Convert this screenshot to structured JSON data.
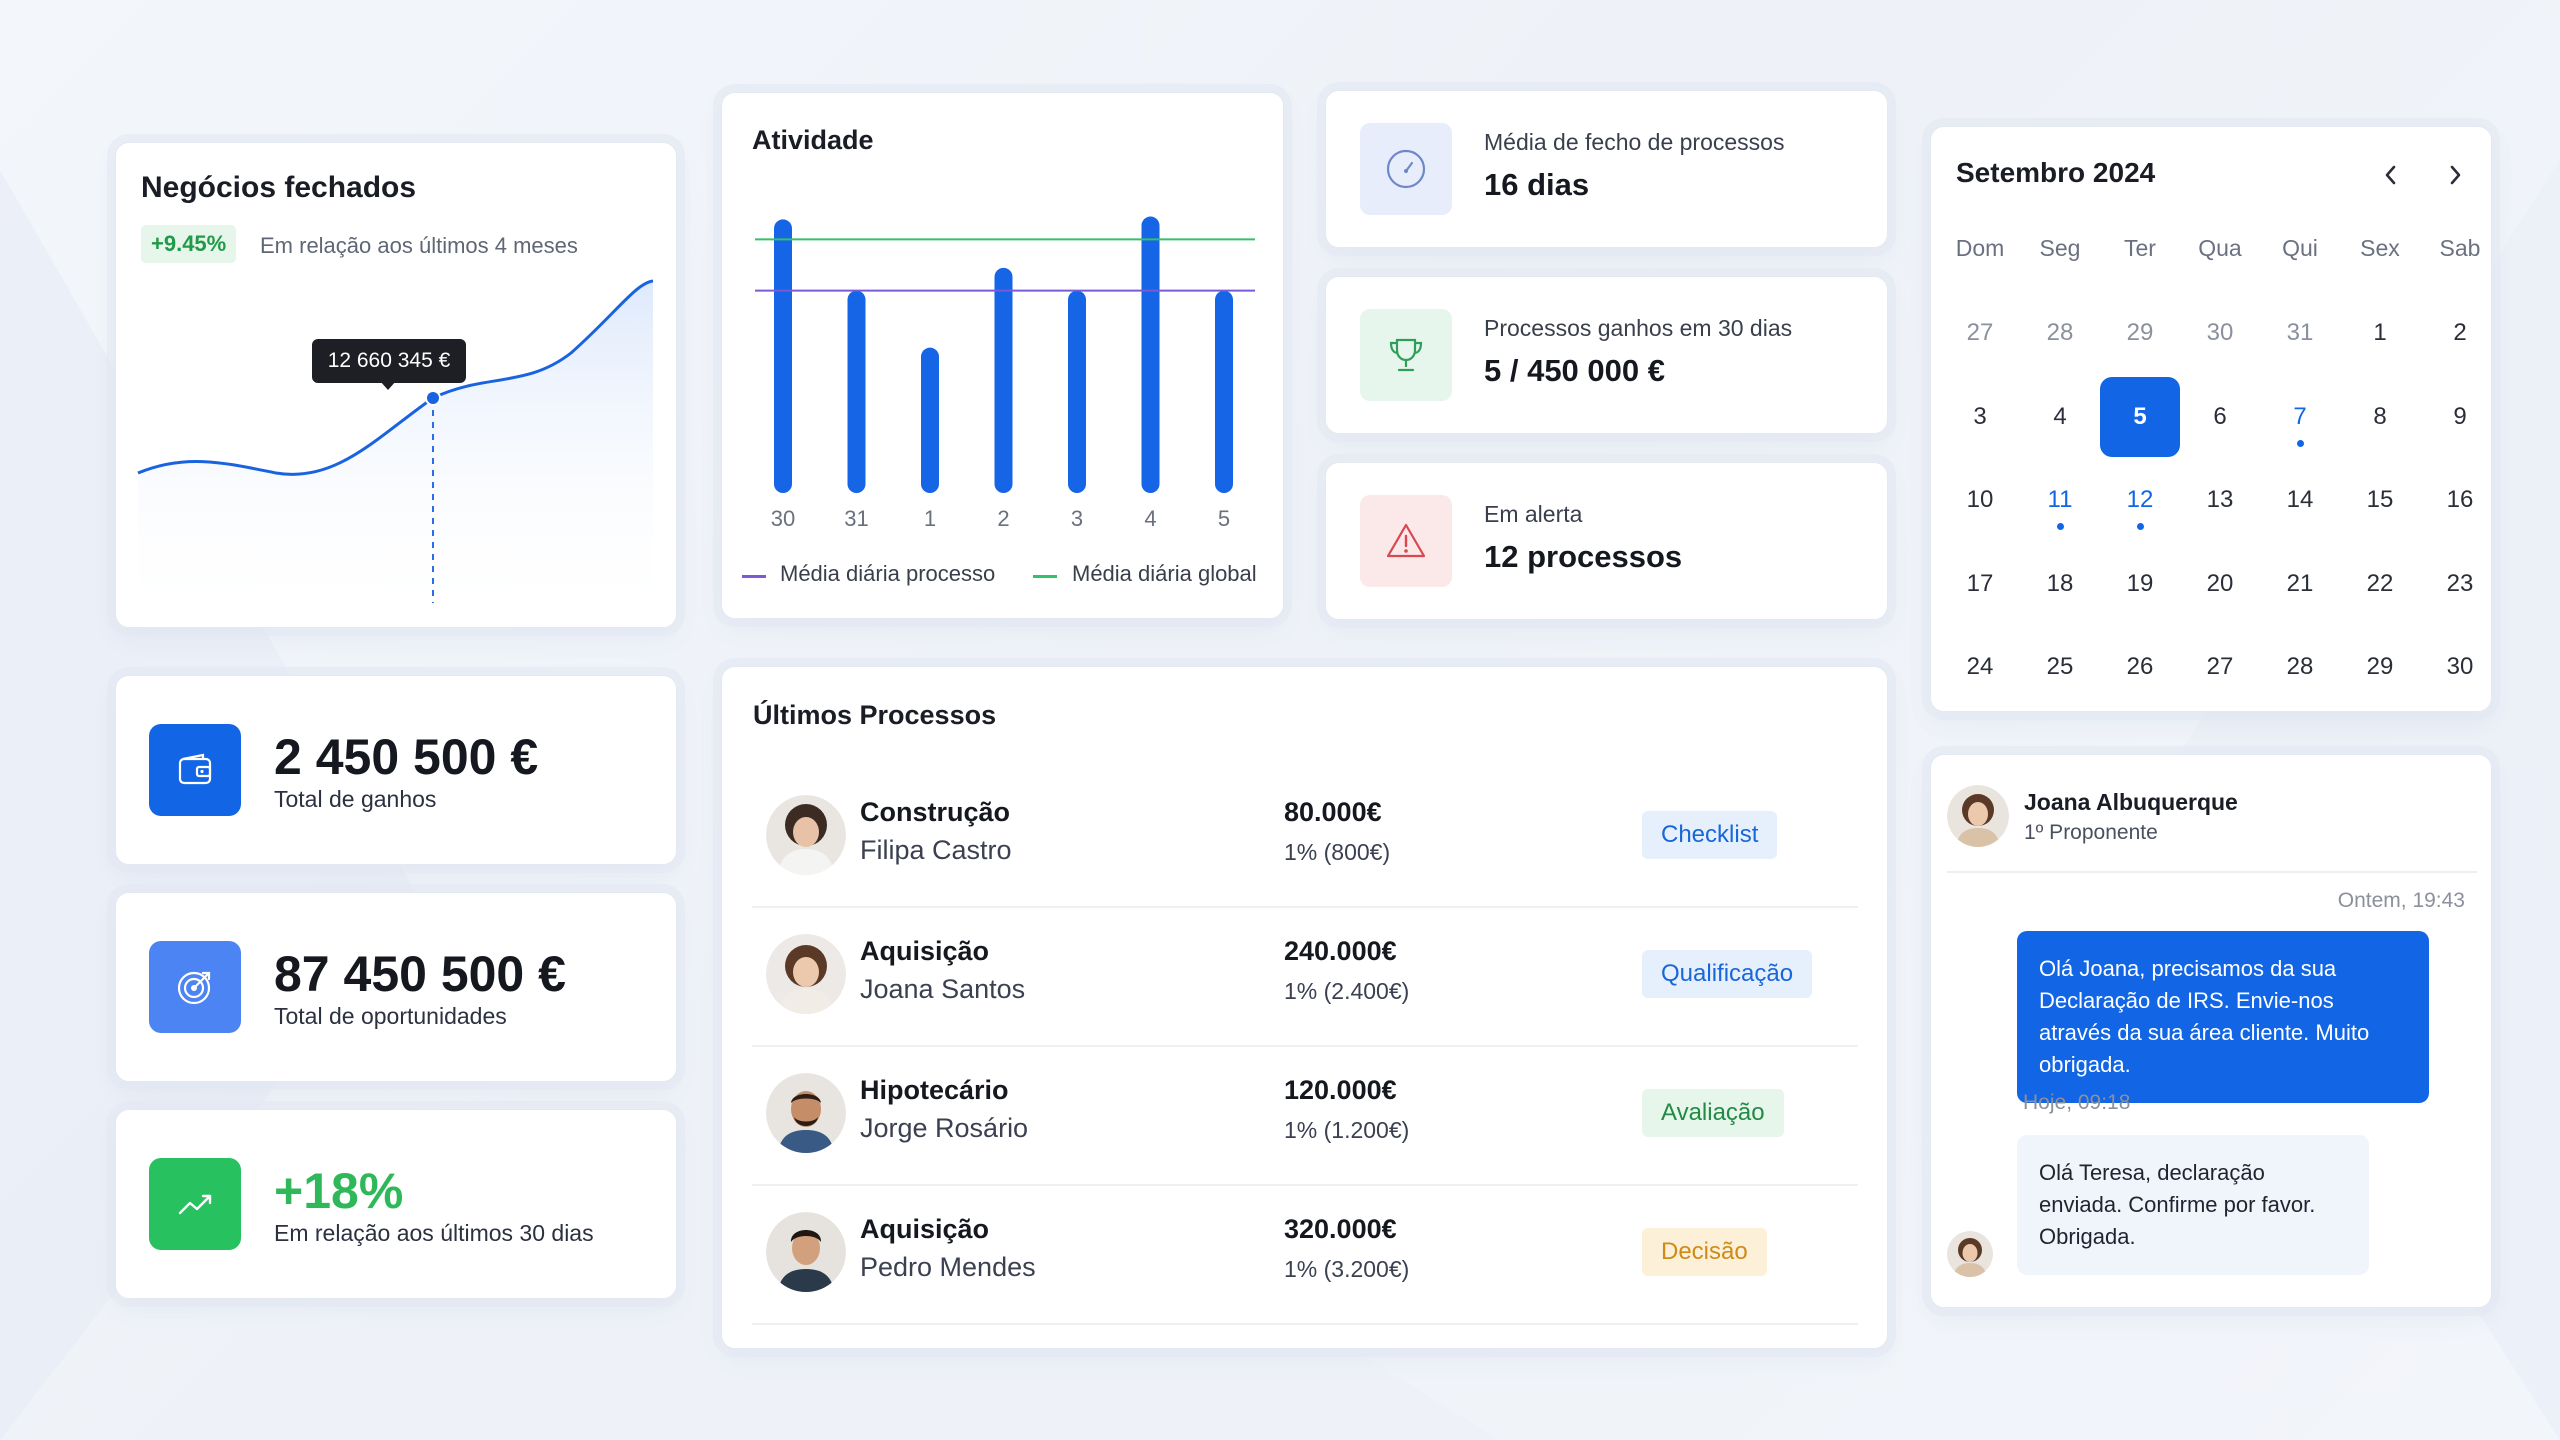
{
  "closed_deals": {
    "title": "Negócios fechados",
    "badge": "+9.45%",
    "subtitle": "Em relação aos últimos 4 meses",
    "tooltip": "12 660 345 €"
  },
  "activity": {
    "title": "Atividade",
    "legend": [
      "Média diária processo",
      "Média diária global"
    ],
    "colors": {
      "bar": "#1565e6",
      "process_line": "#7b5ad8",
      "global_line": "#33c16a"
    }
  },
  "chart_data": {
    "type": "bar",
    "title": "Atividade",
    "categories": [
      "30",
      "31",
      "1",
      "2",
      "3",
      "4",
      "5"
    ],
    "values": [
      96,
      71,
      51,
      79,
      71,
      97,
      71
    ],
    "ylim": [
      0,
      100
    ],
    "grid": false,
    "legend_position": "bottom",
    "reference_lines": [
      {
        "name": "Média diária processo",
        "value": 71
      },
      {
        "name": "Média diária global",
        "value": 89
      }
    ]
  },
  "kpis": [
    {
      "label": "Média de fecho de processos",
      "value": "16 dias",
      "icon": "gauge-icon"
    },
    {
      "label": "Processos ganhos em 30 dias",
      "value": "5 / 450 000 €",
      "icon": "trophy-icon"
    },
    {
      "label": "Em alerta",
      "value": "12 processos",
      "icon": "alert-triangle-icon"
    }
  ],
  "stats": [
    {
      "value": "2 450 500 €",
      "label": "Total de ganhos",
      "icon": "wallet-icon"
    },
    {
      "value": "87 450 500 €",
      "label": "Total de oportunidades",
      "icon": "target-icon"
    },
    {
      "value": "+18%",
      "label": "Em relação aos últimos 30 dias",
      "icon": "trend-up-icon"
    }
  ],
  "processes": {
    "title": "Últimos Processos",
    "rows": [
      {
        "type": "Construção",
        "name": "Filipa Castro",
        "amount": "80.000€",
        "pct": "1% (800€)",
        "tag": "Checklist"
      },
      {
        "type": "Aquisição",
        "name": "Joana Santos",
        "amount": "240.000€",
        "pct": "1% (2.400€)",
        "tag": "Qualificação"
      },
      {
        "type": "Hipotecário",
        "name": "Jorge Rosário",
        "amount": "120.000€",
        "pct": "1% (1.200€)",
        "tag": "Avaliação"
      },
      {
        "type": "Aquisição",
        "name": "Pedro Mendes",
        "amount": "320.000€",
        "pct": "1% (3.200€)",
        "tag": "Decisão"
      }
    ]
  },
  "calendar": {
    "month": "Setembro 2024",
    "weekdays": [
      "Dom",
      "Seg",
      "Ter",
      "Qua",
      "Qui",
      "Sex",
      "Sab"
    ],
    "days": [
      "27",
      "28",
      "29",
      "30",
      "31",
      "1",
      "2",
      "3",
      "4",
      "5",
      "6",
      "7",
      "8",
      "9",
      "10",
      "11",
      "12",
      "13",
      "14",
      "15",
      "16",
      "17",
      "18",
      "19",
      "20",
      "21",
      "22",
      "23",
      "24",
      "25",
      "26",
      "27",
      "28",
      "29",
      "30"
    ],
    "selected_day": "5",
    "event_days": [
      "7",
      "11",
      "12"
    ]
  },
  "chat": {
    "contact_name": "Joana Albuquerque",
    "contact_role": "1º Proponente",
    "sent_time": "Ontem, 19:43",
    "sent_message": "Olá Joana, precisamos da sua Declaração de IRS. Envie-nos através da sua área cliente. Muito obrigada.",
    "received_time": "Hoje, 09:18",
    "received_message": "Olá Teresa, declaração enviada. Confirme por favor. Obrigada."
  }
}
